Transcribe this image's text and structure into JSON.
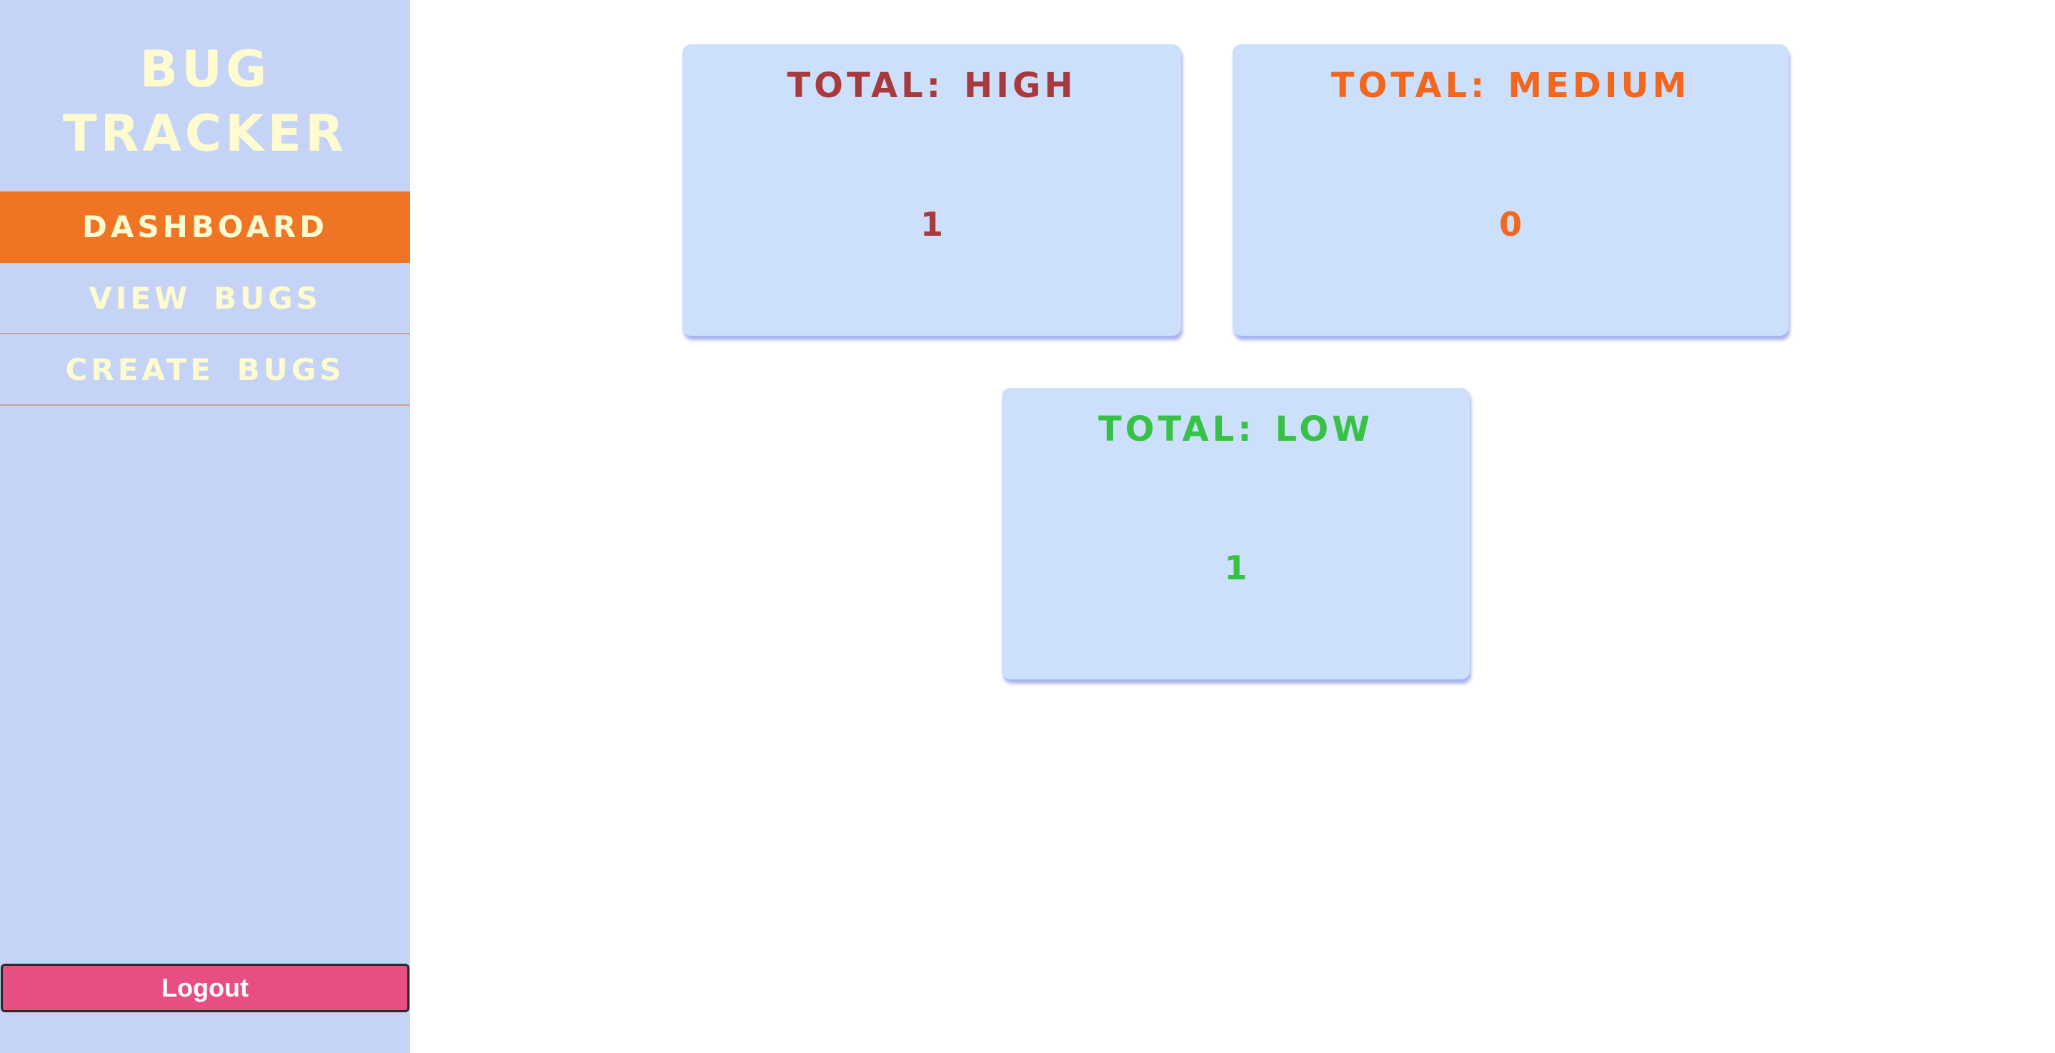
{
  "sidebar": {
    "brand_line1": "BUG",
    "brand_line2": "TRACKER",
    "nav": {
      "dashboard": "DASHBOARD",
      "view_bugs": "VIEW BUGS",
      "create_bugs": "CREATE BUGS"
    },
    "logout_label": "Logout"
  },
  "cards": {
    "high": {
      "prefix": "TOTAL:",
      "label": "HIGH",
      "value": "1",
      "color": "#a83a3d"
    },
    "medium": {
      "prefix": "TOTAL:",
      "label": "MEDIUM",
      "value": "0",
      "color": "#f2671d"
    },
    "low": {
      "prefix": "TOTAL:",
      "label": "LOW",
      "value": "1",
      "color": "#36c244"
    }
  },
  "colors": {
    "sidebar_bg": "#c5d3f6",
    "nav_active_bg": "#ef7423",
    "nav_text": "#fdfbcf",
    "card_bg": "#cce0fc",
    "logout_bg": "#e84f81"
  }
}
